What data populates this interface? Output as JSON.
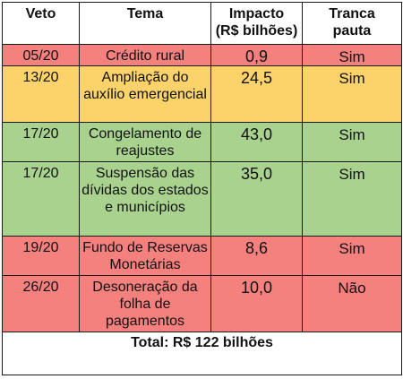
{
  "headers": {
    "veto": "Veto",
    "tema": "Tema",
    "impacto_line1": "Impacto",
    "impacto_line2": "(R$ bilhões)",
    "tranca_line1": "Tranca",
    "tranca_line2": "pauta"
  },
  "rows": [
    {
      "veto": "05/20",
      "tema": "Crédito rural",
      "impacto": "0,9",
      "tranca": "Sim",
      "color": "#f5817f"
    },
    {
      "veto": "13/20",
      "tema": "Ampliação do auxílio emergencial",
      "impacto": "24,5",
      "tranca": "Sim",
      "color": "#fcd26a"
    },
    {
      "veto": "17/20",
      "tema": "Congelamento de reajustes",
      "impacto": "43,0",
      "tranca": "Sim",
      "color": "#a9d28f"
    },
    {
      "veto": "17/20",
      "tema": "Suspensão das dívidas dos estados e municípios",
      "impacto": "35,0",
      "tranca": "Sim",
      "color": "#a9d28f"
    },
    {
      "veto": "19/20",
      "tema": "Fundo de Reservas Monetárias",
      "impacto": "8,6",
      "tranca": "Sim",
      "color": "#f5817f"
    },
    {
      "veto": "26/20",
      "tema": "Desoneração da folha de pagamentos",
      "impacto": "10,0",
      "tranca": "Não",
      "color": "#f5817f"
    }
  ],
  "total": "Total: R$ 122 bilhões"
}
